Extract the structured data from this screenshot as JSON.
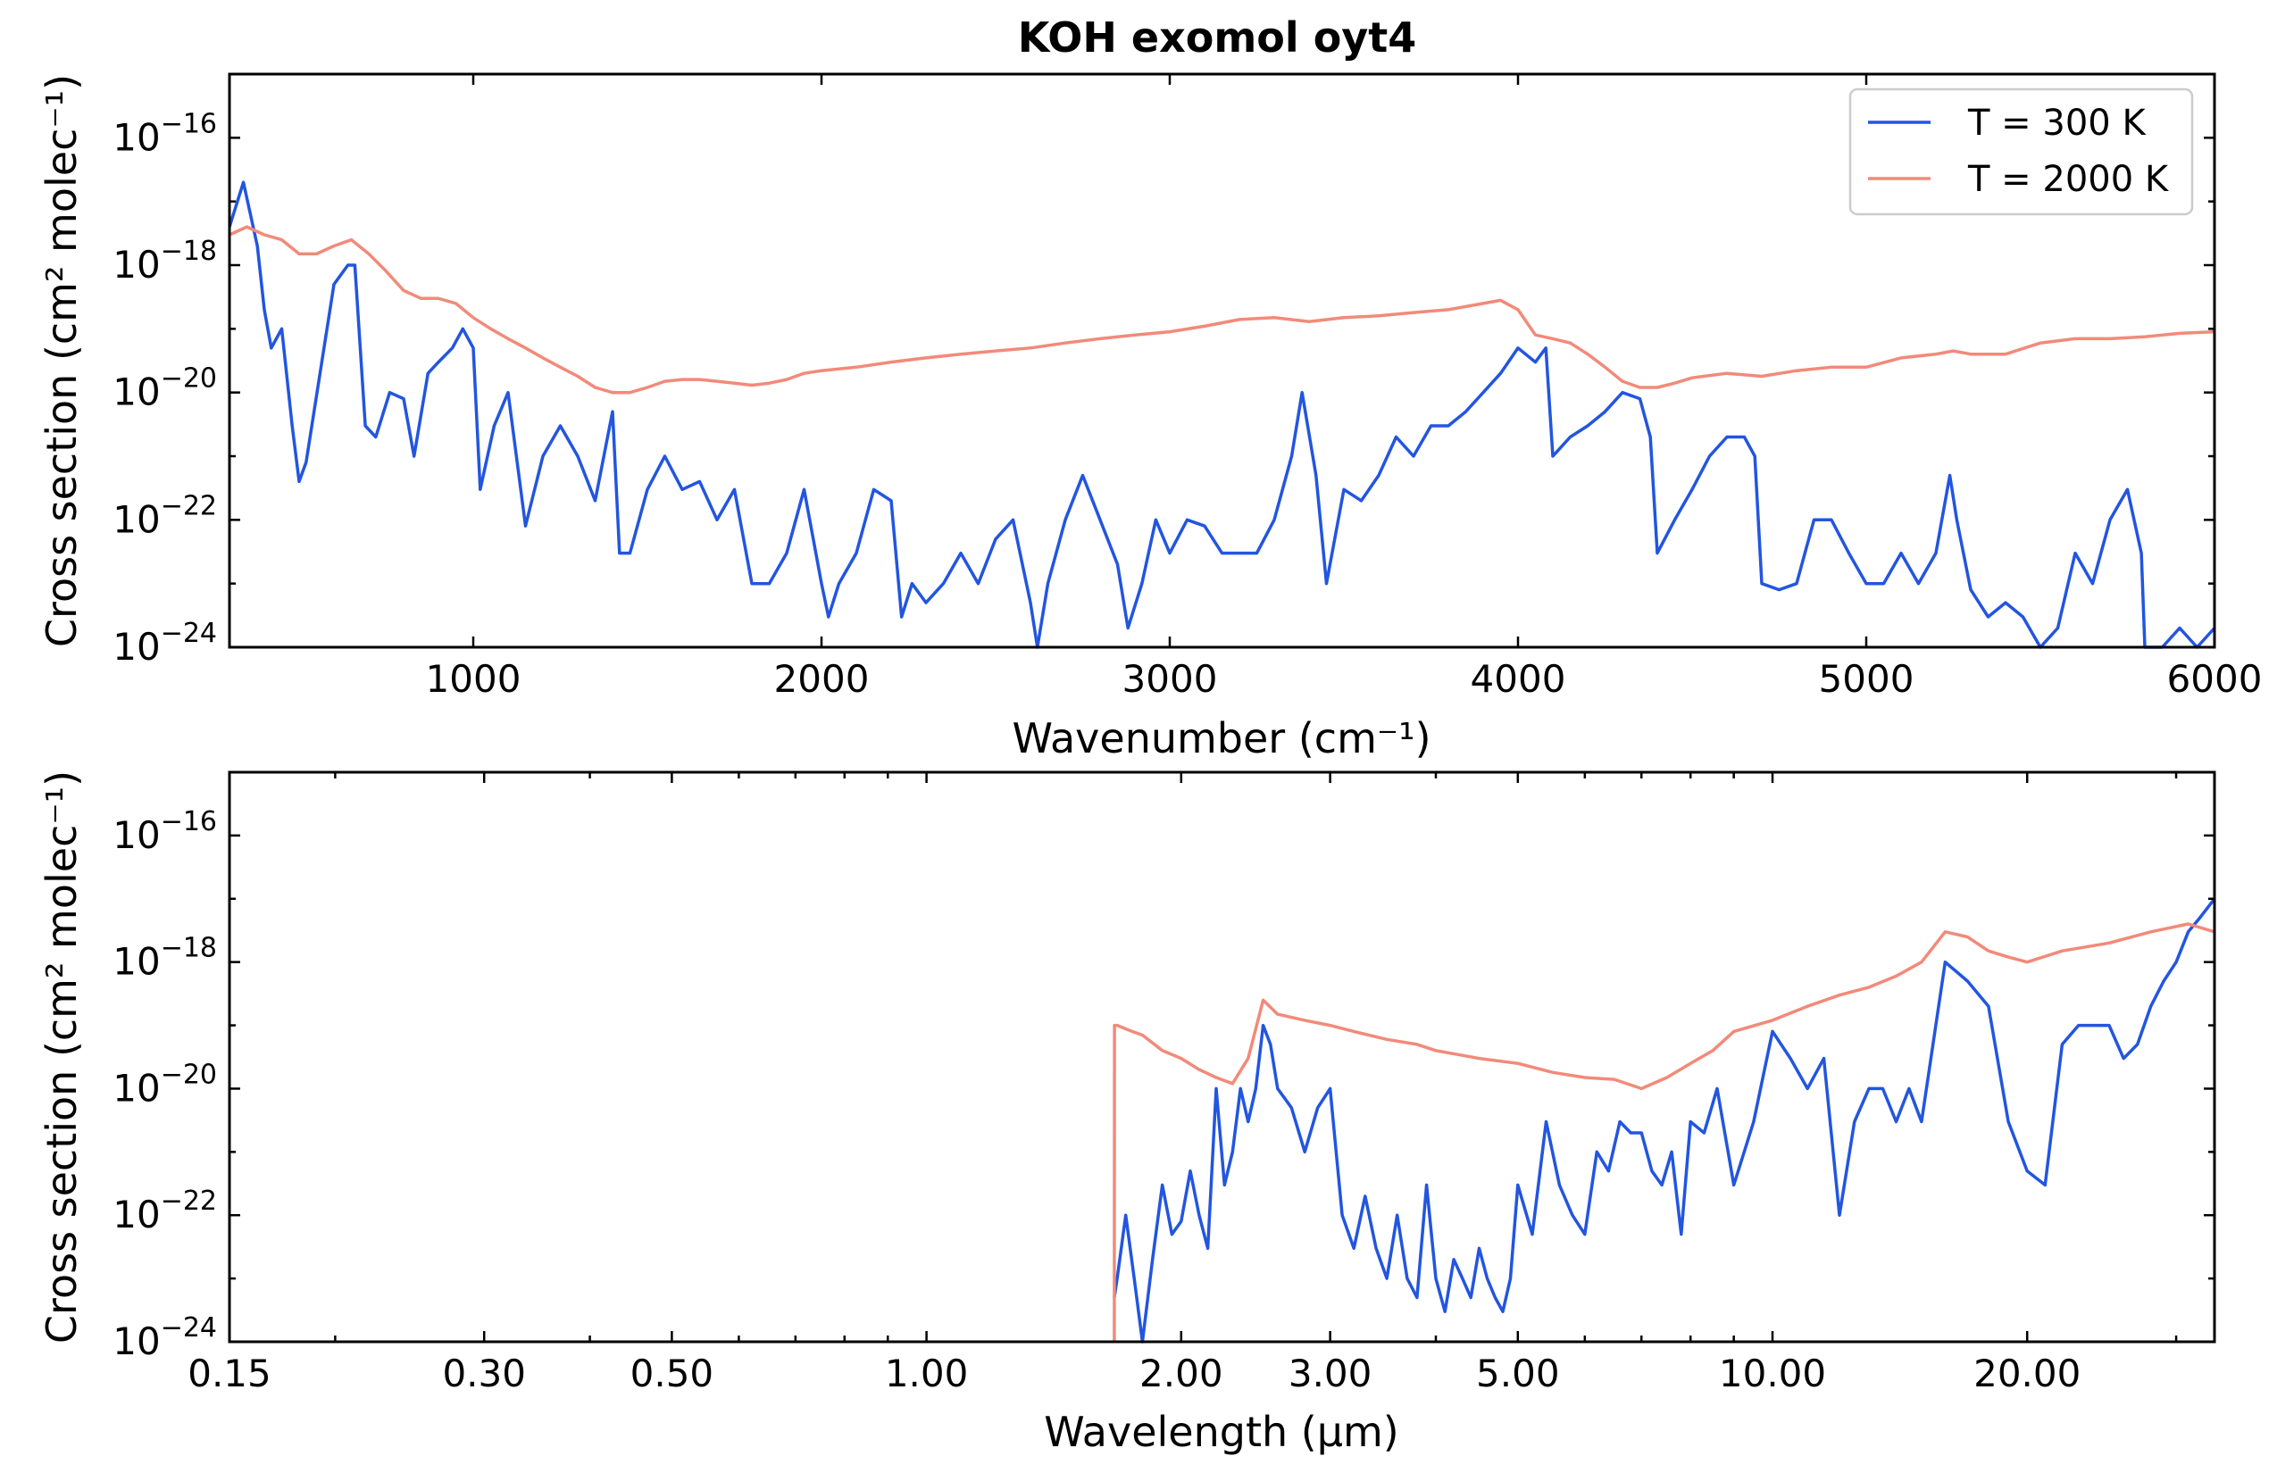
{
  "chart_data": [
    {
      "type": "line",
      "title": "KOH exomol oyt4",
      "xlabel": "Wavenumber (cm⁻¹)",
      "ylabel": "Cross section (cm² molec⁻¹)",
      "xscale": "linear",
      "yscale": "log",
      "xlim": [
        300,
        6000
      ],
      "ylim": [
        1e-24,
        1e-15
      ],
      "xticks": [
        1000,
        2000,
        3000,
        4000,
        5000,
        6000
      ],
      "xtick_labels": [
        "1000",
        "2000",
        "3000",
        "4000",
        "5000",
        "6000"
      ],
      "yticks": [
        1e-16,
        1e-18,
        1e-20,
        1e-22,
        1e-24
      ],
      "ytick_labels": [
        {
          "base": "10",
          "exp": "−16"
        },
        {
          "base": "10",
          "exp": "−18"
        },
        {
          "base": "10",
          "exp": "−20"
        },
        {
          "base": "10",
          "exp": "−22"
        },
        {
          "base": "10",
          "exp": "−24"
        }
      ],
      "legend_position": "top-right",
      "grid": false,
      "series": [
        {
          "name": "T = 300 K",
          "color": "#2255e0",
          "x": [
            300,
            340,
            380,
            400,
            420,
            450,
            480,
            500,
            520,
            560,
            600,
            640,
            660,
            690,
            720,
            760,
            800,
            830,
            870,
            900,
            940,
            970,
            1000,
            1020,
            1060,
            1100,
            1150,
            1200,
            1250,
            1300,
            1350,
            1400,
            1420,
            1450,
            1500,
            1550,
            1600,
            1650,
            1700,
            1750,
            1800,
            1850,
            1900,
            1950,
            2000,
            2020,
            2050,
            2100,
            2150,
            2200,
            2230,
            2260,
            2300,
            2350,
            2400,
            2450,
            2500,
            2550,
            2600,
            2620,
            2650,
            2700,
            2750,
            2800,
            2850,
            2880,
            2920,
            2960,
            3000,
            3050,
            3100,
            3150,
            3200,
            3250,
            3300,
            3350,
            3380,
            3420,
            3450,
            3500,
            3550,
            3600,
            3650,
            3700,
            3750,
            3800,
            3850,
            3900,
            3950,
            4000,
            4050,
            4080,
            4100,
            4150,
            4200,
            4250,
            4300,
            4350,
            4380,
            4400,
            4450,
            4500,
            4550,
            4600,
            4650,
            4680,
            4700,
            4750,
            4800,
            4850,
            4900,
            4950,
            5000,
            5050,
            5100,
            5150,
            5200,
            5240,
            5260,
            5300,
            5350,
            5400,
            5450,
            5500,
            5550,
            5600,
            5650,
            5700,
            5750,
            5790,
            5800,
            5850,
            5900,
            5950,
            6000
          ],
          "y": [
            4e-18,
            2e-17,
            2e-18,
            2e-19,
            5e-20,
            1e-19,
            3e-21,
            4e-22,
            8e-22,
            2e-20,
            5e-19,
            1e-18,
            1e-18,
            3e-21,
            2e-21,
            1e-20,
            8e-21,
            1e-21,
            2e-20,
            3e-20,
            5e-20,
            1e-19,
            5e-20,
            3e-22,
            3e-21,
            1e-20,
            8e-23,
            1e-21,
            3e-21,
            1e-21,
            2e-22,
            5e-21,
            3e-23,
            3e-23,
            3e-22,
            1e-21,
            3e-22,
            4e-22,
            1e-22,
            3e-22,
            1e-23,
            1e-23,
            3e-23,
            3e-22,
            1e-23,
            3e-24,
            1e-23,
            3e-23,
            3e-22,
            2e-22,
            3e-24,
            1e-23,
            5e-24,
            1e-23,
            3e-23,
            1e-23,
            5e-23,
            1e-22,
            5e-24,
            1e-24,
            1e-23,
            1e-22,
            5e-22,
            1e-22,
            2e-23,
            2e-24,
            1e-23,
            1e-22,
            3e-23,
            1e-22,
            8e-23,
            3e-23,
            3e-23,
            3e-23,
            1e-22,
            1e-21,
            1e-20,
            5e-22,
            1e-23,
            3e-22,
            2e-22,
            5e-22,
            2e-21,
            1e-21,
            3e-21,
            3e-21,
            5e-21,
            1e-20,
            2e-20,
            5e-20,
            3e-20,
            5e-20,
            1e-21,
            2e-21,
            3e-21,
            5e-21,
            1e-20,
            8e-21,
            2e-21,
            3e-23,
            1e-22,
            3e-22,
            1e-21,
            2e-21,
            2e-21,
            1e-21,
            1e-23,
            8e-24,
            1e-23,
            1e-22,
            1e-22,
            3e-23,
            1e-23,
            1e-23,
            3e-23,
            1e-23,
            3e-23,
            5e-22,
            1e-22,
            8e-24,
            3e-24,
            5e-24,
            3e-24,
            1e-24,
            2e-24,
            3e-23,
            1e-23,
            1e-22,
            3e-22,
            3e-23,
            1e-24,
            1e-24,
            2e-24,
            1e-24,
            2e-24
          ]
        },
        {
          "name": "T = 2000 K",
          "color": "#f28a7a",
          "x": [
            300,
            350,
            400,
            450,
            500,
            550,
            600,
            650,
            700,
            750,
            800,
            850,
            900,
            950,
            1000,
            1050,
            1100,
            1150,
            1200,
            1250,
            1300,
            1350,
            1400,
            1450,
            1500,
            1550,
            1600,
            1650,
            1700,
            1750,
            1800,
            1850,
            1900,
            1950,
            2000,
            2100,
            2200,
            2300,
            2400,
            2500,
            2600,
            2700,
            2800,
            2900,
            3000,
            3100,
            3200,
            3300,
            3400,
            3500,
            3600,
            3700,
            3800,
            3900,
            3950,
            4000,
            4050,
            4100,
            4150,
            4200,
            4250,
            4300,
            4350,
            4400,
            4450,
            4500,
            4600,
            4700,
            4800,
            4900,
            5000,
            5100,
            5200,
            5250,
            5300,
            5400,
            5500,
            5600,
            5700,
            5800,
            5900,
            6000
          ],
          "y": [
            3e-18,
            4e-18,
            3e-18,
            2.5e-18,
            1.5e-18,
            1.5e-18,
            2e-18,
            2.5e-18,
            1.5e-18,
            8e-19,
            4e-19,
            3e-19,
            3e-19,
            2.5e-19,
            1.5e-19,
            1e-19,
            7e-20,
            5e-20,
            3.5e-20,
            2.5e-20,
            1.8e-20,
            1.2e-20,
            1e-20,
            1e-20,
            1.2e-20,
            1.5e-20,
            1.6e-20,
            1.6e-20,
            1.5e-20,
            1.4e-20,
            1.3e-20,
            1.4e-20,
            1.6e-20,
            2e-20,
            2.2e-20,
            2.5e-20,
            3e-20,
            3.5e-20,
            4e-20,
            4.5e-20,
            5e-20,
            6e-20,
            7e-20,
            8e-20,
            9e-20,
            1.1e-19,
            1.4e-19,
            1.5e-19,
            1.3e-19,
            1.5e-19,
            1.6e-19,
            1.8e-19,
            2e-19,
            2.5e-19,
            2.8e-19,
            2e-19,
            8e-20,
            7e-20,
            6e-20,
            4e-20,
            2.5e-20,
            1.5e-20,
            1.2e-20,
            1.2e-20,
            1.4e-20,
            1.7e-20,
            2e-20,
            1.8e-20,
            2.2e-20,
            2.5e-20,
            2.5e-20,
            3.5e-20,
            4e-20,
            4.5e-20,
            4e-20,
            4e-20,
            6e-20,
            7e-20,
            7e-20,
            7.5e-20,
            8.5e-20,
            9e-20
          ]
        }
      ]
    },
    {
      "type": "line",
      "title": "",
      "xlabel": "Wavelength (μm)",
      "ylabel": "Cross section (cm² molec⁻¹)",
      "xscale": "log",
      "yscale": "log",
      "xlim": [
        0.15,
        33.3
      ],
      "ylim": [
        1e-24,
        1e-15
      ],
      "xticks": [
        0.15,
        0.3,
        0.5,
        1.0,
        2.0,
        3.0,
        5.0,
        10.0,
        20.0
      ],
      "xtick_labels": [
        "0.15",
        "0.30",
        "0.50",
        "1.00",
        "2.00",
        "3.00",
        "5.00",
        "10.00",
        "20.00"
      ],
      "yticks": [
        1e-16,
        1e-18,
        1e-20,
        1e-22,
        1e-24
      ],
      "ytick_labels": [
        {
          "base": "10",
          "exp": "−16"
        },
        {
          "base": "10",
          "exp": "−18"
        },
        {
          "base": "10",
          "exp": "−20"
        },
        {
          "base": "10",
          "exp": "−22"
        },
        {
          "base": "10",
          "exp": "−24"
        }
      ],
      "grid": false,
      "series": [
        {
          "name": "T = 300 K",
          "color": "#2255e0",
          "x": [
            1.667,
            1.68,
            1.72,
            1.76,
            1.8,
            1.85,
            1.9,
            1.95,
            2.0,
            2.05,
            2.1,
            2.15,
            2.2,
            2.25,
            2.3,
            2.35,
            2.4,
            2.45,
            2.5,
            2.55,
            2.6,
            2.7,
            2.8,
            2.9,
            3.0,
            3.1,
            3.2,
            3.3,
            3.4,
            3.5,
            3.6,
            3.7,
            3.8,
            3.9,
            4.0,
            4.1,
            4.2,
            4.3,
            4.4,
            4.5,
            4.6,
            4.7,
            4.8,
            4.9,
            5.0,
            5.2,
            5.4,
            5.6,
            5.8,
            6.0,
            6.2,
            6.4,
            6.6,
            6.8,
            7.0,
            7.2,
            7.4,
            7.6,
            7.8,
            8.0,
            8.3,
            8.6,
            9.0,
            9.5,
            10.0,
            10.5,
            11.0,
            11.5,
            12.0,
            12.5,
            13.0,
            13.5,
            14.0,
            14.5,
            15.0,
            16.0,
            17.0,
            18.0,
            19.0,
            20.0,
            21.0,
            22.0,
            23.0,
            24.0,
            25.0,
            26.0,
            27.0,
            28.0,
            29.0,
            30.0,
            31.0,
            32.0,
            33.3
          ],
          "y": [
            5e-24,
            1e-23,
            1e-22,
            1e-23,
            1e-24,
            2e-23,
            3e-22,
            5e-23,
            8e-23,
            5e-22,
            1e-22,
            3e-23,
            1e-20,
            3e-22,
            1e-21,
            1e-20,
            3e-21,
            1e-20,
            1e-19,
            5e-20,
            1e-20,
            5e-21,
            1e-21,
            5e-21,
            1e-20,
            1e-22,
            3e-23,
            2e-22,
            3e-23,
            1e-23,
            1e-22,
            1e-23,
            5e-24,
            3e-22,
            1e-23,
            3e-24,
            2e-23,
            1e-23,
            5e-24,
            3e-23,
            1e-23,
            5e-24,
            3e-24,
            1e-23,
            3e-22,
            5e-23,
            3e-21,
            3e-22,
            1e-22,
            5e-23,
            1e-21,
            5e-22,
            3e-21,
            2e-21,
            2e-21,
            5e-22,
            3e-22,
            1e-21,
            5e-23,
            3e-21,
            2e-21,
            1e-20,
            3e-22,
            3e-21,
            8e-20,
            3e-20,
            1e-20,
            3e-20,
            1e-22,
            3e-21,
            1e-20,
            1e-20,
            3e-21,
            1e-20,
            3e-21,
            1e-18,
            5e-19,
            2e-19,
            3e-21,
            5e-22,
            3e-22,
            5e-20,
            1e-19,
            1e-19,
            1e-19,
            3e-20,
            5e-20,
            2e-19,
            5e-19,
            1e-18,
            3e-18,
            5e-18,
            1e-17
          ]
        },
        {
          "name": "T = 2000 K",
          "color": "#f28a7a",
          "x": [
            1.667,
            1.668,
            1.68,
            1.75,
            1.8,
            1.9,
            2.0,
            2.1,
            2.2,
            2.3,
            2.4,
            2.5,
            2.6,
            2.8,
            3.0,
            3.2,
            3.5,
            3.8,
            4.0,
            4.5,
            5.0,
            5.5,
            6.0,
            6.5,
            7.0,
            7.5,
            8.0,
            8.5,
            9.0,
            10.0,
            11.0,
            12.0,
            13.0,
            14.0,
            15.0,
            16.0,
            17.0,
            18.0,
            19.0,
            20.0,
            22.0,
            25.0,
            28.0,
            31.0,
            33.3
          ],
          "y": [
            1e-24,
            1e-19,
            1e-19,
            8e-20,
            7e-20,
            4e-20,
            3e-20,
            2e-20,
            1.5e-20,
            1.2e-20,
            3e-20,
            2.5e-19,
            1.5e-19,
            1.2e-19,
            1e-19,
            8e-20,
            6e-20,
            5e-20,
            4e-20,
            3e-20,
            2.5e-20,
            1.8e-20,
            1.5e-20,
            1.4e-20,
            1e-20,
            1.5e-20,
            2.5e-20,
            4e-20,
            8e-20,
            1.2e-19,
            2e-19,
            3e-19,
            4e-19,
            6e-19,
            1e-18,
            3e-18,
            2.5e-18,
            1.5e-18,
            1.2e-18,
            1e-18,
            1.5e-18,
            2e-18,
            3e-18,
            4e-18,
            3e-18
          ]
        }
      ]
    }
  ]
}
